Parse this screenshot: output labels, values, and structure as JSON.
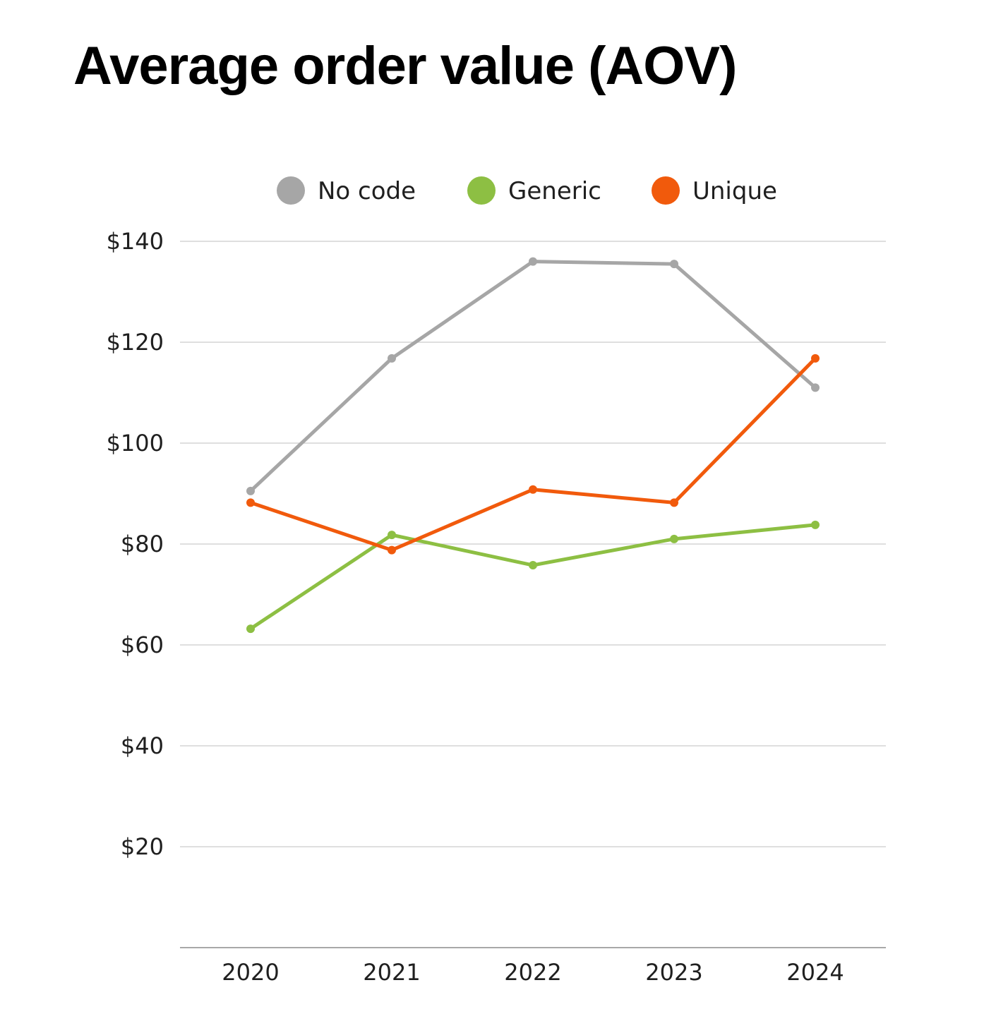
{
  "chart_data": {
    "type": "line",
    "title": "Average order value (AOV)",
    "xlabel": "",
    "ylabel": "",
    "categories": [
      "2020",
      "2021",
      "2022",
      "2023",
      "2024"
    ],
    "ylim": [
      0,
      140
    ],
    "y_ticks": [
      20,
      40,
      60,
      80,
      100,
      120,
      140
    ],
    "y_tick_labels": [
      "$20",
      "$40",
      "$60",
      "$80",
      "$100",
      "$120",
      "$140"
    ],
    "grid": true,
    "legend_position": "top-center",
    "series": [
      {
        "name": "No code",
        "color": "#a6a6a6",
        "values": [
          90.5,
          116.8,
          136,
          135.5,
          111
        ]
      },
      {
        "name": "Generic",
        "color": "#8dbf43",
        "values": [
          63.2,
          81.8,
          75.8,
          81,
          83.8
        ]
      },
      {
        "name": "Unique",
        "color": "#f15a0c",
        "values": [
          88.2,
          78.8,
          90.8,
          88.2,
          116.8
        ]
      }
    ]
  }
}
